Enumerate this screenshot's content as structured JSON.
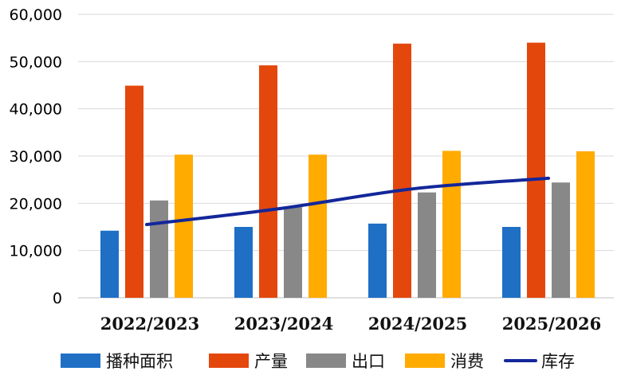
{
  "chart_data": {
    "type": "bar",
    "categories": [
      "2022/2023",
      "2023/2024",
      "2024/2025",
      "2025/2026"
    ],
    "series": [
      {
        "name": "播种面积",
        "kind": "bar",
        "color": "#1f6fc5",
        "values": [
          14200,
          15000,
          15700,
          15000
        ]
      },
      {
        "name": "产量",
        "kind": "bar",
        "color": "#e4470c",
        "values": [
          44900,
          49200,
          53800,
          54000
        ]
      },
      {
        "name": "出口",
        "kind": "bar",
        "color": "#888888",
        "values": [
          20600,
          19200,
          22300,
          24400
        ]
      },
      {
        "name": "消费",
        "kind": "bar",
        "color": "#ffab00",
        "values": [
          30300,
          30300,
          31100,
          31000
        ]
      },
      {
        "name": "库存",
        "kind": "line",
        "color": "#13279a",
        "values": [
          15500,
          18900,
          23100,
          25300
        ]
      }
    ],
    "yticks": [
      "0",
      "10,000",
      "20,000",
      "30,000",
      "40,000",
      "50,000",
      "60,000"
    ],
    "ylim": [
      0,
      60000
    ],
    "grid": true,
    "legend_position": "bottom",
    "title": "",
    "xlabel": "",
    "ylabel": ""
  }
}
